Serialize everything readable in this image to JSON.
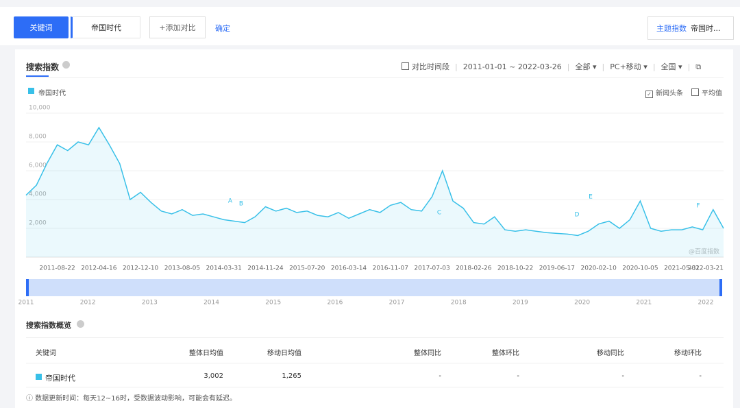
{
  "toolbar": {
    "tab": "关键词",
    "keyword": "帝国时代",
    "add": "+添加对比",
    "confirm": "确定",
    "topic_label": "主题指数",
    "topic_value": "帝国时..."
  },
  "panel": {
    "title": "搜索指数",
    "compare": "对比时间段",
    "range": "2011-01-01 ~ 2022-03-26",
    "filters": [
      "全部",
      "PC+移动",
      "全国"
    ],
    "news": "新闻头条",
    "average": "平均值",
    "watermark": "@百度指数"
  },
  "chart_data": {
    "type": "line",
    "categories": [
      null,
      null,
      null,
      "2011-08-22",
      null,
      null,
      null,
      "2012-04-16",
      null,
      null,
      null,
      "2012-12-10",
      null,
      null,
      null,
      "2013-08-05",
      null,
      null,
      null,
      "2014-03-31",
      null,
      null,
      null,
      "2014-11-24",
      null,
      null,
      null,
      "2015-07-20",
      null,
      null,
      null,
      "2016-03-14",
      null,
      null,
      null,
      "2016-11-07",
      null,
      null,
      null,
      "2017-07-03",
      null,
      null,
      null,
      "2018-02-26",
      null,
      null,
      null,
      "2018-10-22",
      null,
      null,
      null,
      "2019-06-17",
      null,
      null,
      null,
      "2020-02-10",
      null,
      null,
      null,
      "2020-10-05",
      null,
      null,
      null,
      "2021-05-31",
      null,
      null,
      null,
      "2022-03-21"
    ],
    "series": [
      {
        "name": "帝国时代",
        "color": "#38c0e8",
        "values": [
          4300,
          5000,
          6500,
          7800,
          7400,
          8000,
          7800,
          9000,
          7800,
          6500,
          4000,
          4500,
          3800,
          3200,
          3000,
          3300,
          2900,
          3000,
          2800,
          2600,
          2500,
          2400,
          2800,
          3500,
          3200,
          3400,
          3100,
          3200,
          2900,
          2800,
          3100,
          2700,
          3000,
          3300,
          3100,
          3600,
          3800,
          3300,
          3200,
          4200,
          6000,
          3900,
          3400,
          2400,
          2300,
          2800,
          1900,
          1800,
          1900,
          1800,
          1700,
          1650,
          1600,
          1500,
          1800,
          2300,
          2500,
          2000,
          2600,
          3900,
          2000,
          1800,
          1900,
          1900,
          2100,
          1900,
          3300,
          2000
        ]
      }
    ],
    "ylim": [
      0,
      10000
    ],
    "yticks": [
      {
        "value": 2000,
        "label": "2,000"
      },
      {
        "value": 4000,
        "label": "4,000"
      },
      {
        "value": 6000,
        "label": "6,000"
      },
      {
        "value": 8000,
        "label": "8,000"
      },
      {
        "value": 10000,
        "label": "10,000"
      }
    ],
    "grid": true,
    "annotations": [
      "A",
      "B",
      "C",
      "D",
      "E",
      "F"
    ]
  },
  "navigator": {
    "years": [
      "2011",
      "2012",
      "2013",
      "2014",
      "2015",
      "2016",
      "2017",
      "2018",
      "2019",
      "2020",
      "2021",
      "2022"
    ]
  },
  "overview": {
    "title": "搜索指数概览",
    "headers": [
      "关键词",
      "整体日均值",
      "移动日均值",
      "整体同比",
      "整体环比",
      "移动同比",
      "移动环比"
    ],
    "rows": [
      [
        "帝国时代",
        "3,002",
        "1,265",
        "-",
        "-",
        "-",
        "-"
      ]
    ]
  },
  "footnote": "数据更新时间：每天12~16时，受数据波动影响，可能会有延迟。"
}
